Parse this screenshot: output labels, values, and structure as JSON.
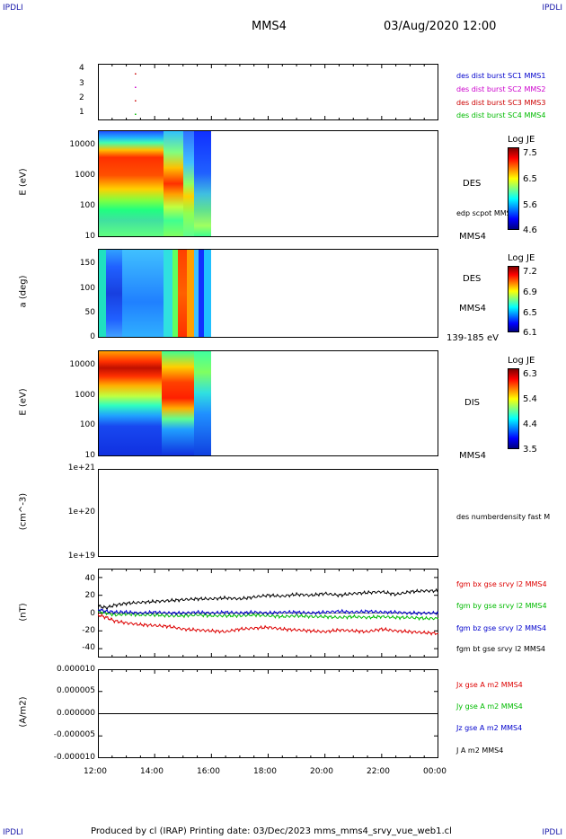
{
  "corners": {
    "top_left": "IPDLI",
    "top_right": "IPDLI",
    "bottom_left": "IPDLI",
    "bottom_right": "IPDLI"
  },
  "header": {
    "spacecraft": "MMS4",
    "datetime": "03/Aug/2020 12:00"
  },
  "footer": {
    "text": "Produced by cl (IRAP)   Printing date: 03/Dec/2023   mms_mms4_srvy_vue_web1.cl"
  },
  "x_axis": {
    "ticks": [
      "12:00",
      "14:00",
      "16:00",
      "18:00",
      "20:00",
      "22:00",
      "00:00"
    ],
    "range_hours": [
      12,
      24
    ]
  },
  "panels": {
    "burst": {
      "yticks": [
        "4",
        "3",
        "2",
        "1"
      ],
      "legend": [
        {
          "text": "des dist burst SC1 MMS1",
          "color": "#0000cc"
        },
        {
          "text": "des dist burst SC2 MMS2",
          "color": "#cc00cc"
        },
        {
          "text": "des dist burst SC3 MMS3",
          "color": "#cc0000"
        },
        {
          "text": "des dist burst SC4 MMS4",
          "color": "#00bb00"
        }
      ]
    },
    "des_energy": {
      "ylabel": "E (eV)",
      "yticks": [
        "10000",
        "1000",
        "100",
        "10"
      ],
      "instrument": "DES",
      "sub": "edp scpot MMS4",
      "sc": "MMS4",
      "colorbar": {
        "title": "Log JE",
        "ticks": [
          "7.5",
          "6.5",
          "5.6",
          "4.6"
        ]
      }
    },
    "des_pitch": {
      "ylabel": "a (deg)",
      "yticks": [
        "150",
        "100",
        "50",
        "0"
      ],
      "instrument": "DES",
      "sc": "MMS4",
      "energy_range": "139-185 eV",
      "colorbar": {
        "title": "Log JE",
        "ticks": [
          "7.2",
          "6.9",
          "6.5",
          "6.1"
        ]
      }
    },
    "dis_energy": {
      "ylabel": "E (eV)",
      "yticks": [
        "10000",
        "1000",
        "100",
        "10"
      ],
      "instrument": "DIS",
      "sc": "MMS4",
      "colorbar": {
        "title": "Log JE",
        "ticks": [
          "6.3",
          "5.4",
          "4.4",
          "3.5"
        ]
      }
    },
    "density": {
      "ylabel": "(cm^-3)",
      "yticks": [
        "1e+21",
        "1e+20",
        "1e+19"
      ],
      "legend": "des numberdensity fast M"
    },
    "fgm": {
      "ylabel": "(nT)",
      "yticks": [
        "40",
        "20",
        "0",
        "-20",
        "-40"
      ],
      "legend": [
        {
          "text": "fgm bx gse srvy l2 MMS4",
          "color": "#dd0000"
        },
        {
          "text": "fgm by gse srvy l2 MMS4",
          "color": "#00bb00"
        },
        {
          "text": "fgm bz gse srvy l2 MMS4",
          "color": "#0000cc"
        },
        {
          "text": "fgm bt gse srvy l2 MMS4",
          "color": "#000000"
        }
      ]
    },
    "current": {
      "ylabel": "(A/m2)",
      "yticks": [
        "0.000010",
        "0.000005",
        "0.000000",
        "-0.000005",
        "-0.000010"
      ],
      "legend": [
        {
          "text": "Jx gse A m2 MMS4",
          "color": "#dd0000"
        },
        {
          "text": "Jy gse A m2 MMS4",
          "color": "#00bb00"
        },
        {
          "text": "Jz gse A m2 MMS4",
          "color": "#0000cc"
        },
        {
          "text": "J A m2 MMS4",
          "color": "#000000"
        }
      ]
    }
  },
  "chart_data": {
    "type": "line",
    "x_unit": "UT hours",
    "xlim": [
      12,
      24
    ],
    "data_end_hour": 16.0,
    "series": [
      {
        "name": "fgm bt gse srvy l2 MMS4",
        "color": "#000000",
        "x": [
          12.0,
          12.3,
          12.6,
          13.0,
          13.5,
          14.0,
          14.5,
          15.0,
          15.5,
          16.0,
          16.5,
          17.0,
          17.5,
          18.0,
          18.5,
          19.0,
          19.5,
          20.0,
          20.5,
          21.0,
          21.5,
          22.0,
          22.5,
          23.0,
          23.5,
          24.0
        ],
        "y": [
          8,
          6,
          9,
          11,
          12,
          13,
          14,
          15,
          16,
          16,
          17,
          16,
          18,
          20,
          19,
          21,
          20,
          22,
          20,
          22,
          23,
          24,
          21,
          24,
          25,
          25
        ]
      },
      {
        "name": "fgm bx gse srvy l2 MMS4",
        "color": "#dd0000",
        "x": [
          12.0,
          12.3,
          12.6,
          13.0,
          13.5,
          14.0,
          14.5,
          15.0,
          15.5,
          16.0,
          16.5,
          17.0,
          17.5,
          18.0,
          18.5,
          19.0,
          19.5,
          20.0,
          20.5,
          21.0,
          21.5,
          22.0,
          22.5,
          23.0,
          23.5,
          24.0
        ],
        "y": [
          -2,
          -5,
          -9,
          -11,
          -13,
          -14,
          -15,
          -18,
          -19,
          -20,
          -21,
          -18,
          -17,
          -16,
          -18,
          -19,
          -20,
          -21,
          -19,
          -20,
          -21,
          -18,
          -20,
          -21,
          -22,
          -23
        ]
      },
      {
        "name": "fgm by gse srvy l2 MMS4",
        "color": "#00bb00",
        "x": [
          12.0,
          12.3,
          12.6,
          13.0,
          13.5,
          14.0,
          14.5,
          15.0,
          15.5,
          16.0,
          16.5,
          17.0,
          17.5,
          18.0,
          18.5,
          19.0,
          19.5,
          20.0,
          20.5,
          21.0,
          21.5,
          22.0,
          22.5,
          23.0,
          23.5,
          24.0
        ],
        "y": [
          2,
          0,
          -2,
          -1,
          -2,
          -2,
          -3,
          -3,
          -2,
          -3,
          -3,
          -3,
          -2,
          -3,
          -4,
          -3,
          -4,
          -4,
          -5,
          -4,
          -5,
          -4,
          -5,
          -5,
          -6,
          -6
        ]
      },
      {
        "name": "fgm bz gse srvy l2 MMS4",
        "color": "#0000cc",
        "x": [
          12.0,
          12.3,
          12.6,
          13.0,
          13.5,
          14.0,
          14.5,
          15.0,
          15.5,
          16.0,
          16.5,
          17.0,
          17.5,
          18.0,
          18.5,
          19.0,
          19.5,
          20.0,
          20.5,
          21.0,
          21.5,
          22.0,
          22.5,
          23.0,
          23.5,
          24.0
        ],
        "y": [
          4,
          2,
          1,
          1,
          0,
          1,
          0,
          0,
          1,
          0,
          1,
          0,
          1,
          0,
          1,
          1,
          0,
          1,
          2,
          1,
          2,
          1,
          1,
          0,
          0,
          0
        ]
      }
    ],
    "fgm_ylim": [
      -50,
      50
    ],
    "current_ylim": [
      -1e-05,
      1e-05
    ],
    "density_ylim": [
      "1e+19",
      "1e+21"
    ],
    "burst_marks": [
      {
        "sc": 3,
        "hour": 13.3,
        "color": "#cc00cc"
      },
      {
        "sc": 2,
        "hour": 13.3,
        "color": "#cc0000"
      },
      {
        "sc": 1,
        "hour": 13.3,
        "color": "#00bb00"
      },
      {
        "sc": 4,
        "hour": 13.3,
        "color": "#cc0000"
      }
    ]
  }
}
